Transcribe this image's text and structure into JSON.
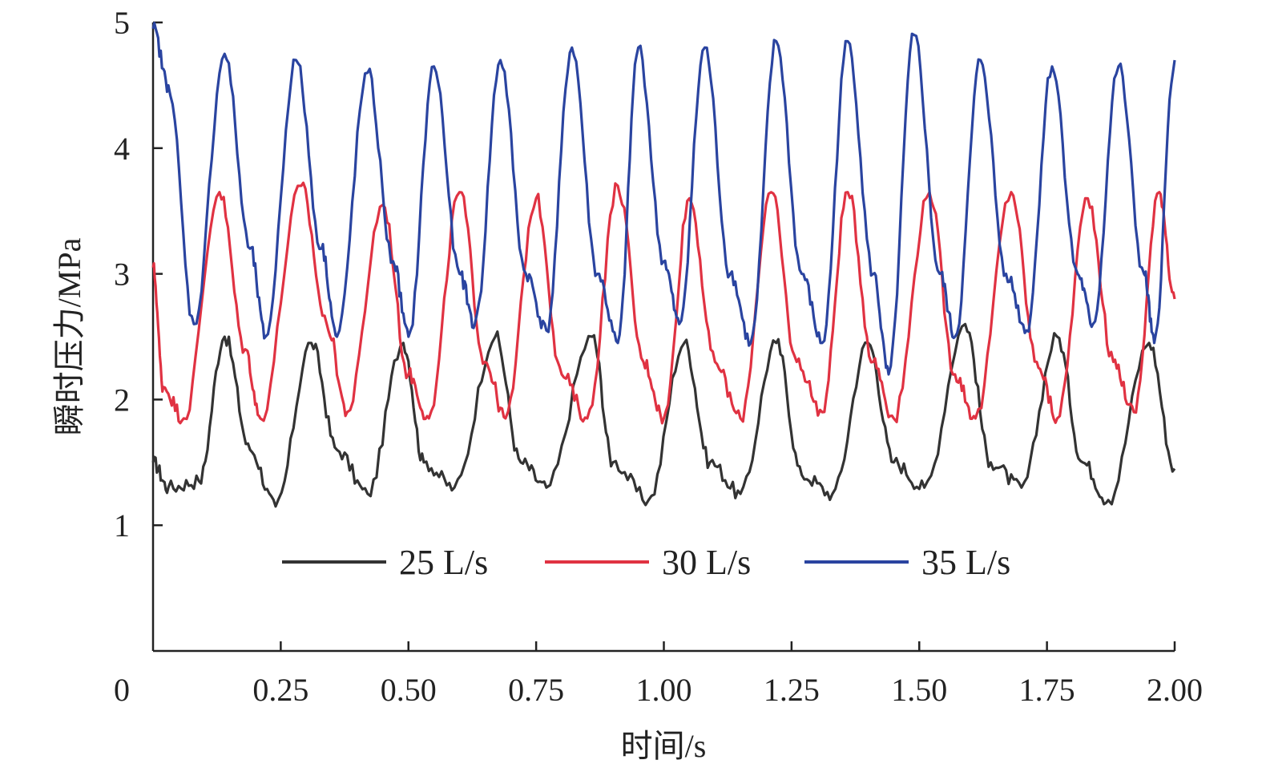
{
  "chart_data": {
    "type": "line",
    "title": "",
    "xlabel": "时间/s",
    "ylabel": "瞬时压力/MPa",
    "xlim": [
      0,
      2.0
    ],
    "ylim": [
      0,
      5
    ],
    "x_ticks": [
      "0",
      "0.25",
      "0.50",
      "0.75",
      "1.00",
      "1.25",
      "1.50",
      "1.75",
      "2.00"
    ],
    "x_tick_values": [
      0,
      0.25,
      0.5,
      0.75,
      1.0,
      1.25,
      1.5,
      1.75,
      2.0
    ],
    "y_ticks": [
      "1",
      "2",
      "3",
      "4",
      "5"
    ],
    "y_tick_values": [
      1,
      2,
      3,
      4,
      5
    ],
    "grid": false,
    "legend_position": "bottom-center",
    "series": [
      {
        "name": "25 L/s",
        "color": "#333333",
        "shape": {
          "mean": 1.85,
          "amp": 0.6,
          "period": 0.18,
          "phase": 0.14
        },
        "peaks": [
          [
            0.0,
            1.5
          ],
          [
            0.03,
            1.3
          ],
          [
            0.09,
            1.35
          ],
          [
            0.14,
            2.5
          ],
          [
            0.19,
            1.6
          ],
          [
            0.24,
            1.15
          ],
          [
            0.31,
            2.45
          ],
          [
            0.36,
            1.6
          ],
          [
            0.42,
            1.25
          ],
          [
            0.49,
            2.45
          ],
          [
            0.53,
            1.5
          ],
          [
            0.59,
            1.3
          ],
          [
            0.67,
            2.5
          ],
          [
            0.72,
            1.5
          ],
          [
            0.77,
            1.3
          ],
          [
            0.86,
            2.5
          ],
          [
            0.9,
            1.5
          ],
          [
            0.97,
            1.2
          ],
          [
            1.04,
            2.45
          ],
          [
            1.09,
            1.5
          ],
          [
            1.15,
            1.25
          ],
          [
            1.22,
            2.45
          ],
          [
            1.27,
            1.4
          ],
          [
            1.33,
            1.25
          ],
          [
            1.4,
            2.45
          ],
          [
            1.45,
            1.5
          ],
          [
            1.51,
            1.3
          ],
          [
            1.59,
            2.6
          ],
          [
            1.64,
            1.5
          ],
          [
            1.7,
            1.3
          ],
          [
            1.77,
            2.5
          ],
          [
            1.82,
            1.5
          ],
          [
            1.87,
            1.2
          ],
          [
            1.95,
            2.45
          ],
          [
            2.0,
            1.45
          ]
        ]
      },
      {
        "name": "30 L/s",
        "color": "#e03242",
        "peaks": [
          [
            0.0,
            3.05
          ],
          [
            0.02,
            2.1
          ],
          [
            0.06,
            1.85
          ],
          [
            0.13,
            3.65
          ],
          [
            0.18,
            2.4
          ],
          [
            0.21,
            1.85
          ],
          [
            0.29,
            3.7
          ],
          [
            0.34,
            2.6
          ],
          [
            0.38,
            1.9
          ],
          [
            0.45,
            3.55
          ],
          [
            0.5,
            2.2
          ],
          [
            0.54,
            1.85
          ],
          [
            0.6,
            3.65
          ],
          [
            0.65,
            2.3
          ],
          [
            0.69,
            1.85
          ],
          [
            0.75,
            3.6
          ],
          [
            0.8,
            2.2
          ],
          [
            0.85,
            1.85
          ],
          [
            0.91,
            3.7
          ],
          [
            0.96,
            2.3
          ],
          [
            1.0,
            1.85
          ],
          [
            1.05,
            3.6
          ],
          [
            1.1,
            2.3
          ],
          [
            1.15,
            1.85
          ],
          [
            1.21,
            3.65
          ],
          [
            1.26,
            2.3
          ],
          [
            1.31,
            1.9
          ],
          [
            1.36,
            3.65
          ],
          [
            1.41,
            2.3
          ],
          [
            1.45,
            1.85
          ],
          [
            1.52,
            3.65
          ],
          [
            1.57,
            2.2
          ],
          [
            1.61,
            1.85
          ],
          [
            1.68,
            3.65
          ],
          [
            1.73,
            2.3
          ],
          [
            1.77,
            1.85
          ],
          [
            1.83,
            3.6
          ],
          [
            1.88,
            2.3
          ],
          [
            1.92,
            1.9
          ],
          [
            1.97,
            3.65
          ],
          [
            2.0,
            2.8
          ]
        ]
      },
      {
        "name": "35 L/s",
        "color": "#2a44a0",
        "peaks": [
          [
            0.0,
            4.95
          ],
          [
            0.03,
            4.5
          ],
          [
            0.08,
            2.6
          ],
          [
            0.14,
            4.75
          ],
          [
            0.19,
            3.2
          ],
          [
            0.22,
            2.5
          ],
          [
            0.28,
            4.7
          ],
          [
            0.33,
            3.2
          ],
          [
            0.36,
            2.5
          ],
          [
            0.42,
            4.6
          ],
          [
            0.47,
            3.1
          ],
          [
            0.5,
            2.5
          ],
          [
            0.55,
            4.65
          ],
          [
            0.6,
            3.0
          ],
          [
            0.63,
            2.6
          ],
          [
            0.68,
            4.7
          ],
          [
            0.73,
            3.0
          ],
          [
            0.77,
            2.55
          ],
          [
            0.82,
            4.8
          ],
          [
            0.87,
            3.0
          ],
          [
            0.91,
            2.45
          ],
          [
            0.95,
            4.8
          ],
          [
            1.0,
            3.1
          ],
          [
            1.03,
            2.6
          ],
          [
            1.08,
            4.8
          ],
          [
            1.13,
            3.0
          ],
          [
            1.17,
            2.45
          ],
          [
            1.22,
            4.85
          ],
          [
            1.27,
            3.0
          ],
          [
            1.31,
            2.45
          ],
          [
            1.36,
            4.85
          ],
          [
            1.41,
            3.0
          ],
          [
            1.44,
            2.2
          ],
          [
            1.49,
            4.9
          ],
          [
            1.54,
            3.0
          ],
          [
            1.57,
            2.5
          ],
          [
            1.62,
            4.7
          ],
          [
            1.67,
            3.0
          ],
          [
            1.71,
            2.55
          ],
          [
            1.76,
            4.65
          ],
          [
            1.81,
            3.0
          ],
          [
            1.84,
            2.6
          ],
          [
            1.89,
            4.65
          ],
          [
            1.94,
            3.0
          ],
          [
            1.96,
            2.45
          ],
          [
            2.0,
            4.7
          ]
        ]
      }
    ]
  }
}
